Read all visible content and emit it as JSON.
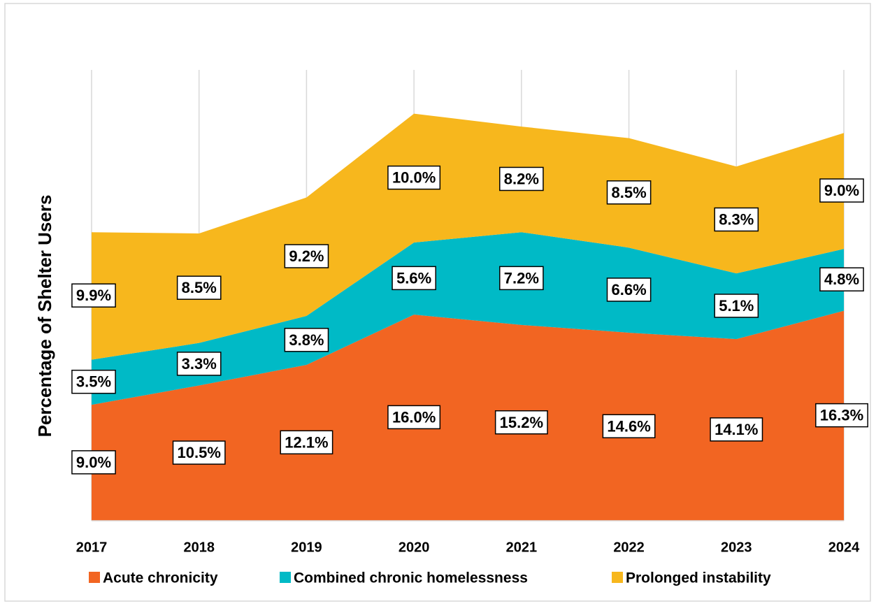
{
  "chart_data": {
    "type": "stacked_area",
    "y_label": "Percentage of Shelter Users",
    "categories": [
      "2017",
      "2018",
      "2019",
      "2020",
      "2021",
      "2022",
      "2023",
      "2024"
    ],
    "series": [
      {
        "name": "Acute chronicity",
        "color": "#f26522",
        "values": [
          9.0,
          10.5,
          12.1,
          16.0,
          15.2,
          14.6,
          14.1,
          16.3
        ],
        "value_labels": [
          "9.0%",
          "10.5%",
          "12.1%",
          "16.0%",
          "15.2%",
          "14.6%",
          "14.1%",
          "16.3%"
        ]
      },
      {
        "name": "Combined chronic homelessness",
        "color": "#00bac6",
        "values": [
          3.5,
          3.3,
          3.8,
          5.6,
          7.2,
          6.6,
          5.1,
          4.8
        ],
        "value_labels": [
          "3.5%",
          "3.3%",
          "3.8%",
          "5.6%",
          "7.2%",
          "6.6%",
          "5.1%",
          "4.8%"
        ]
      },
      {
        "name": "Prolonged instability",
        "color": "#f7b71d",
        "values": [
          9.9,
          8.5,
          9.2,
          10.0,
          8.2,
          8.5,
          8.3,
          9.0
        ],
        "value_labels": [
          "9.9%",
          "8.5%",
          "9.2%",
          "10.0%",
          "8.2%",
          "8.5%",
          "8.3%",
          "9.0%"
        ]
      }
    ],
    "ylim": [
      0,
      35
    ],
    "grid": true,
    "legend": "bottom"
  }
}
